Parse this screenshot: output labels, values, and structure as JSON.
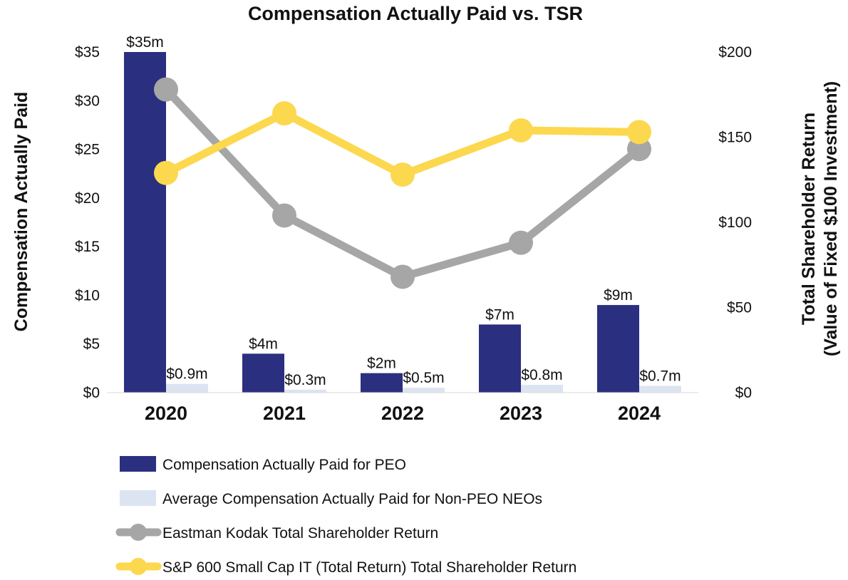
{
  "chart_data": {
    "type": "bar",
    "title": "Compensation Actually Paid vs. TSR",
    "categories": [
      "2020",
      "2021",
      "2022",
      "2023",
      "2024"
    ],
    "ylabel": "Compensation Actually Paid",
    "y2label_line1": "Total Shareholder Return",
    "y2label_line2": "(Value of Fixed $100 Investment)",
    "ylim": [
      0,
      35
    ],
    "yticks": [
      0,
      5,
      10,
      15,
      20,
      25,
      30,
      35
    ],
    "ytick_labels": [
      "$0",
      "$5",
      "$10",
      "$15",
      "$20",
      "$25",
      "$30",
      "$35"
    ],
    "y2lim": [
      0,
      200
    ],
    "y2ticks": [
      0,
      50,
      100,
      150,
      200
    ],
    "y2tick_labels": [
      "$0",
      "$50",
      "$100",
      "$150",
      "$200"
    ],
    "series": [
      {
        "name": "Compensation Actually Paid for PEO",
        "kind": "bar",
        "axis": "left",
        "color": "#2b2f80",
        "values": [
          35,
          4,
          2,
          7,
          9
        ],
        "labels": [
          "$35m",
          "$4m",
          "$2m",
          "$7m",
          "$9m"
        ]
      },
      {
        "name": "Average Compensation Actually Paid for Non-PEO NEOs",
        "kind": "bar",
        "axis": "left",
        "color": "#dce4f2",
        "values": [
          0.9,
          0.3,
          0.5,
          0.8,
          0.7
        ],
        "labels": [
          "$0.9m",
          "$0.3m",
          "$0.5m",
          "$0.8m",
          "$0.7m"
        ]
      },
      {
        "name": "Eastman Kodak Total Shareholder Return",
        "kind": "line",
        "axis": "right",
        "color": "#a6a6a6",
        "values": [
          178,
          104,
          68,
          88,
          143
        ]
      },
      {
        "name": "S&P 600 Small Cap IT (Total Return) Total Shareholder Return",
        "kind": "line",
        "axis": "right",
        "color": "#fcd84f",
        "values": [
          129,
          164,
          128,
          154,
          153
        ]
      }
    ]
  }
}
